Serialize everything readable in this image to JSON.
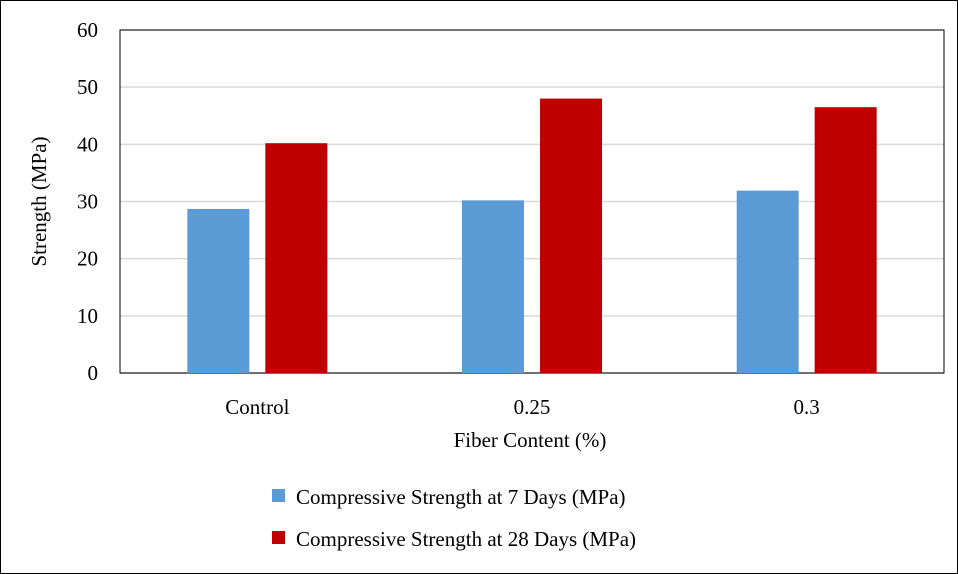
{
  "chart_data": {
    "type": "bar",
    "title": "",
    "xlabel": "Fiber Content (%)",
    "ylabel": "Strength (MPa)",
    "categories": [
      "Control",
      "0.25",
      "0.3"
    ],
    "ylim": [
      0,
      60
    ],
    "yticks": [
      0,
      10,
      20,
      30,
      40,
      50,
      60
    ],
    "grid": true,
    "legend_position": "bottom",
    "series": [
      {
        "name": "Compressive Strength at 7 Days (MPa)",
        "values": [
          28.7,
          30.2,
          31.9
        ],
        "color": "#5b9bd5"
      },
      {
        "name": "Compressive Strength at 28 Days (MPa)",
        "values": [
          40.2,
          48.0,
          46.5
        ],
        "color": "#c00000"
      }
    ]
  }
}
